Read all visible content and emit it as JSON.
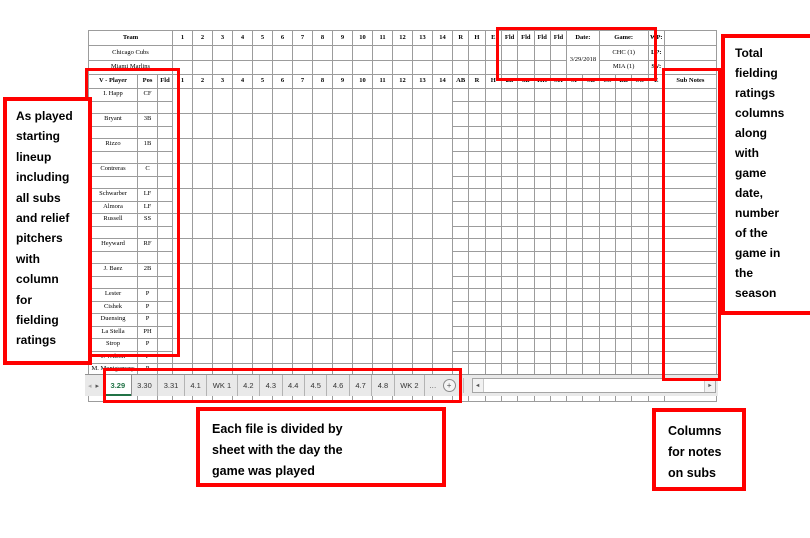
{
  "sheet": {
    "band1": {
      "team_header": "Team",
      "innings": [
        "1",
        "2",
        "3",
        "4",
        "5",
        "6",
        "7",
        "8",
        "9",
        "10",
        "11",
        "12",
        "13",
        "14"
      ],
      "rhe": [
        "R",
        "H",
        "E"
      ],
      "fld_headers": [
        "Fld",
        "Fld",
        "Fld",
        "Fld"
      ],
      "date_label": "Date:",
      "date_value": "3/29/2018",
      "game_label": "Game:",
      "wp_label": "WP:",
      "lp_label": "LP:",
      "sv_label": "SV:",
      "teams": [
        {
          "name": "Chicago Cubs",
          "game": "CHC (1)"
        },
        {
          "name": "Miami Marlins",
          "game": "MIA (1)"
        }
      ]
    },
    "band2": {
      "player_header": "V - Player",
      "pos_header": "Pos",
      "fld_header": "Fld",
      "innings": [
        "1",
        "2",
        "3",
        "4",
        "5",
        "6",
        "7",
        "8",
        "9",
        "10",
        "11",
        "12",
        "13",
        "14"
      ],
      "stats": [
        "AB",
        "R",
        "H",
        "2B",
        "3B",
        "HR",
        "SH",
        "SF",
        "SB",
        "CS",
        "BB",
        "SO",
        "E"
      ],
      "subnotes_header": "Sub Notes"
    },
    "roster": [
      {
        "name": "I. Happ",
        "pos": "CF",
        "center": false,
        "small": false
      },
      {
        "name": "",
        "pos": "",
        "center": false,
        "small": false
      },
      {
        "name": "Bryant",
        "pos": "3B",
        "center": false,
        "small": false
      },
      {
        "name": "",
        "pos": "",
        "center": false,
        "small": false
      },
      {
        "name": "Rizzo",
        "pos": "1B",
        "center": false,
        "small": false
      },
      {
        "name": "",
        "pos": "",
        "center": false,
        "small": false
      },
      {
        "name": "Contreras",
        "pos": "C",
        "center": false,
        "small": false
      },
      {
        "name": "",
        "pos": "",
        "center": false,
        "small": false
      },
      {
        "name": "Schwarber",
        "pos": "LF",
        "center": false,
        "small": false
      },
      {
        "name": "Almora",
        "pos": "LF",
        "center": true,
        "small": false
      },
      {
        "name": "Russell",
        "pos": "SS",
        "center": false,
        "small": false
      },
      {
        "name": "",
        "pos": "",
        "center": false,
        "small": false
      },
      {
        "name": "Heyward",
        "pos": "RF",
        "center": false,
        "small": false
      },
      {
        "name": "",
        "pos": "",
        "center": false,
        "small": false
      },
      {
        "name": "J. Baez",
        "pos": "2B",
        "center": false,
        "small": false
      },
      {
        "name": "",
        "pos": "",
        "center": false,
        "small": false
      },
      {
        "name": "Lester",
        "pos": "P",
        "center": false,
        "small": false
      },
      {
        "name": "Cishek",
        "pos": "P",
        "center": true,
        "small": false
      },
      {
        "name": "Duensing",
        "pos": "P",
        "center": true,
        "small": false
      },
      {
        "name": "La Stella",
        "pos": "PH",
        "center": true,
        "small": false
      },
      {
        "name": "Strop",
        "pos": "P",
        "center": true,
        "small": false
      },
      {
        "name": "J. Wilson",
        "pos": "P",
        "center": true,
        "small": false
      },
      {
        "name": "M. Montgomery",
        "pos": "P",
        "center": false,
        "small": true
      },
      {
        "name": "",
        "pos": "",
        "center": false,
        "small": false
      },
      {
        "name": "",
        "pos": "",
        "center": false,
        "small": false
      }
    ]
  },
  "tabbar": {
    "tabs": [
      "3.29",
      "3.30",
      "3.31",
      "4.1",
      "WK 1",
      "4.2",
      "4.3",
      "4.4",
      "4.5",
      "4.6",
      "4.7",
      "4.8",
      "WK 2"
    ],
    "active_tab": "3.29",
    "icons": {
      "prev_sheet": "◂",
      "next_sheet": "▸",
      "more_tabs": "…",
      "add_sheet": "+",
      "scroll_left": "◄",
      "scroll_right": "►"
    }
  },
  "annotations": {
    "left_note": "As played\nstarting\nlineup\nincluding\nall subs\nand relief\npitchers\nwith\ncolumn\nfor\nfielding\nratings",
    "right_note": "Total\nfielding\nratings\ncolumns\nalong\nwith\ngame\ndate,\nnumber\nof the\ngame in\nthe\nseason",
    "bottom_center_note": "Each file is divided by\nsheet with the day the\ngame was played",
    "bottom_right_note": "Columns\nfor notes\non subs"
  },
  "colors": {
    "annotation_red": "#ff0000",
    "header_gray": "#bfbfbf",
    "active_tab_green": "#217346"
  }
}
